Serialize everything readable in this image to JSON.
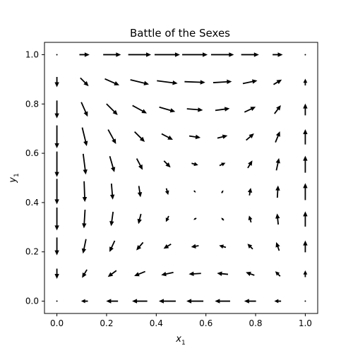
{
  "chart_data": {
    "type": "quiver",
    "title": "Battle of the Sexes",
    "xlabel": "x",
    "xlabel_sub": "1",
    "ylabel": "y",
    "ylabel_sub": "1",
    "xlim": [
      -0.05,
      1.05
    ],
    "ylim": [
      -0.05,
      1.05
    ],
    "x_ticks": [
      0.0,
      0.2,
      0.4,
      0.6,
      0.8,
      1.0
    ],
    "y_ticks": [
      0.0,
      0.2,
      0.4,
      0.6,
      0.8,
      1.0
    ],
    "x_tick_labels": [
      "0.0",
      "0.2",
      "0.4",
      "0.6",
      "0.8",
      "1.0"
    ],
    "y_tick_labels": [
      "0.0",
      "0.2",
      "0.4",
      "0.6",
      "0.8",
      "1.0"
    ],
    "grid": false,
    "arrow_color": "#000000",
    "grid_points": [
      0.0,
      0.1111,
      0.2222,
      0.3333,
      0.4444,
      0.5556,
      0.6667,
      0.7778,
      0.8889,
      1.0
    ],
    "vector_field": {
      "dx": "x*(1-x)*(5*y-2)",
      "dy": "y*(1-y)*(5*x-3)"
    }
  }
}
